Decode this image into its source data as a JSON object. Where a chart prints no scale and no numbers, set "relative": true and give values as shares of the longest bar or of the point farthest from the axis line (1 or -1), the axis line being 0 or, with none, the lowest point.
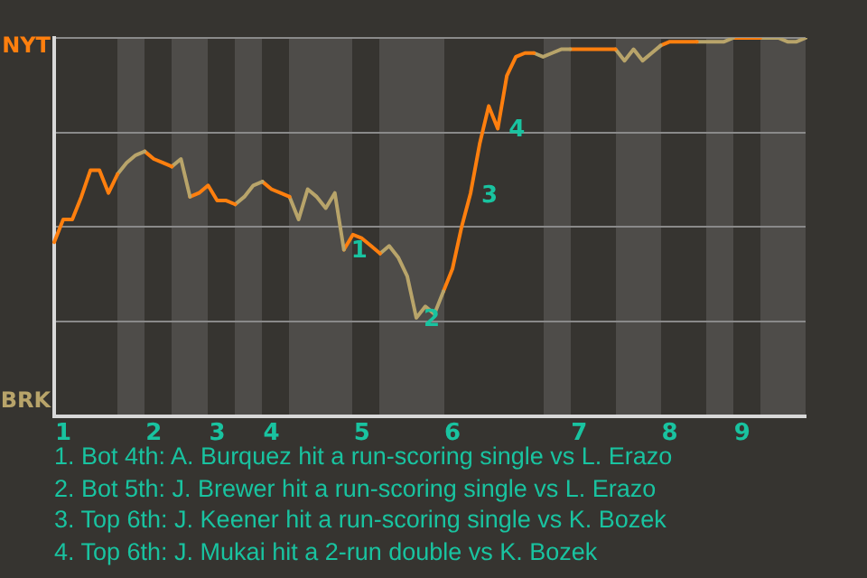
{
  "chart_data": {
    "type": "line",
    "relative": true,
    "categories": [
      null,
      "1",
      null,
      null,
      null,
      null,
      null,
      null,
      null,
      null,
      null,
      "2",
      null,
      null,
      null,
      null,
      null,
      null,
      "3",
      null,
      null,
      null,
      null,
      null,
      "4",
      null,
      null,
      null,
      null,
      null,
      null,
      null,
      null,
      null,
      "5",
      null,
      null,
      null,
      null,
      null,
      null,
      null,
      null,
      null,
      "6",
      null,
      null,
      null,
      null,
      null,
      null,
      null,
      null,
      null,
      null,
      null,
      null,
      null,
      "7",
      null,
      null,
      null,
      null,
      null,
      null,
      null,
      null,
      null,
      "8",
      null,
      null,
      null,
      null,
      null,
      null,
      null,
      "9",
      null,
      null,
      null,
      null,
      null,
      null,
      null
    ],
    "series": [
      {
        "color": "#ff7f0e",
        "values": [
          0.46,
          0.52,
          0.52,
          0.58,
          0.65,
          0.65,
          0.59,
          0.64,
          null,
          null,
          null,
          null,
          null,
          null,
          null,
          null,
          null,
          null,
          null,
          null,
          null,
          null,
          null,
          null,
          null,
          null,
          null,
          null,
          null,
          null,
          null,
          null,
          null,
          null,
          null,
          null,
          null,
          null,
          null,
          null,
          null,
          null,
          null,
          null,
          null,
          null,
          null,
          null,
          null,
          null,
          null,
          null,
          null,
          null,
          null,
          null,
          null,
          null,
          null,
          null,
          null,
          null,
          null,
          null,
          null,
          null,
          null,
          null,
          null,
          null,
          null,
          null,
          null,
          null,
          null,
          null,
          null,
          null,
          null,
          null,
          null,
          null,
          null,
          null
        ]
      },
      {
        "color": "#b8a46a",
        "values": [
          null,
          null,
          null,
          null,
          null,
          null,
          null,
          0.64,
          0.67,
          0.69,
          0.7,
          null,
          null,
          null,
          null,
          null,
          null,
          null,
          null,
          null,
          null,
          null,
          null,
          null,
          null,
          null,
          null,
          null,
          null,
          null,
          null,
          null,
          null,
          null,
          null,
          null,
          null,
          null,
          null,
          null,
          null,
          null,
          null,
          null,
          null,
          null,
          null,
          null,
          null,
          null,
          null,
          null,
          null,
          null,
          null,
          null,
          null,
          null,
          null,
          null,
          null,
          null,
          null,
          null,
          null,
          null,
          null,
          null,
          null,
          null,
          null,
          null,
          null,
          null,
          null,
          null,
          null,
          null,
          null,
          null,
          null,
          null,
          null,
          null
        ]
      },
      {
        "color": "#ff7f0e",
        "values": [
          null,
          null,
          null,
          null,
          null,
          null,
          null,
          null,
          null,
          null,
          0.7,
          0.68,
          0.67,
          0.66,
          null,
          null,
          null,
          null,
          null,
          null,
          null,
          null,
          null,
          null,
          null,
          null,
          null,
          null,
          null,
          null,
          null,
          null,
          null,
          null,
          null,
          null,
          null,
          null,
          null,
          null,
          null,
          null,
          null,
          null,
          null,
          null,
          null,
          null,
          null,
          null,
          null,
          null,
          null,
          null,
          null,
          null,
          null,
          null,
          null,
          null,
          null,
          null,
          null,
          null,
          null,
          null,
          null,
          null,
          null,
          null,
          null,
          null,
          null,
          null,
          null,
          null,
          null,
          null,
          null,
          null,
          null,
          null,
          null,
          null
        ]
      },
      {
        "color": "#b8a46a",
        "values": [
          null,
          null,
          null,
          null,
          null,
          null,
          null,
          null,
          null,
          null,
          null,
          null,
          null,
          0.66,
          0.68,
          0.58,
          null,
          null,
          null,
          null,
          null,
          null,
          null,
          null,
          null,
          null,
          null,
          null,
          null,
          null,
          null,
          null,
          null,
          null,
          null,
          null,
          null,
          null,
          null,
          null,
          null,
          null,
          null,
          null,
          null,
          null,
          null,
          null,
          null,
          null,
          null,
          null,
          null,
          null,
          null,
          null,
          null,
          null,
          null,
          null,
          null,
          null,
          null,
          null,
          null,
          null,
          null,
          null,
          null,
          null,
          null,
          null,
          null,
          null,
          null,
          null,
          null,
          null,
          null,
          null,
          null,
          null,
          null,
          null
        ]
      },
      {
        "color": "#ff7f0e",
        "values": [
          null,
          null,
          null,
          null,
          null,
          null,
          null,
          null,
          null,
          null,
          null,
          null,
          null,
          null,
          null,
          0.58,
          0.59,
          0.61,
          0.57,
          0.57,
          0.56,
          null,
          null,
          null,
          null,
          null,
          null,
          null,
          null,
          null,
          null,
          null,
          null,
          null,
          null,
          null,
          null,
          null,
          null,
          null,
          null,
          null,
          null,
          null,
          null,
          null,
          null,
          null,
          null,
          null,
          null,
          null,
          null,
          null,
          null,
          null,
          null,
          null,
          null,
          null,
          null,
          null,
          null,
          null,
          null,
          null,
          null,
          null,
          null,
          null,
          null,
          null,
          null,
          null,
          null,
          null,
          null,
          null,
          null,
          null,
          null,
          null,
          null,
          null
        ]
      },
      {
        "color": "#b8a46a",
        "values": [
          null,
          null,
          null,
          null,
          null,
          null,
          null,
          null,
          null,
          null,
          null,
          null,
          null,
          null,
          null,
          null,
          null,
          null,
          null,
          null,
          0.56,
          0.58,
          0.61,
          0.62,
          null,
          null,
          null,
          null,
          null,
          null,
          null,
          null,
          null,
          null,
          null,
          null,
          null,
          null,
          null,
          null,
          null,
          null,
          null,
          null,
          null,
          null,
          null,
          null,
          null,
          null,
          null,
          null,
          null,
          null,
          null,
          null,
          null,
          null,
          null,
          null,
          null,
          null,
          null,
          null,
          null,
          null,
          null,
          null,
          null,
          null,
          null,
          null,
          null,
          null,
          null,
          null,
          null,
          null,
          null,
          null,
          null,
          null,
          null,
          null
        ]
      },
      {
        "color": "#ff7f0e",
        "values": [
          null,
          null,
          null,
          null,
          null,
          null,
          null,
          null,
          null,
          null,
          null,
          null,
          null,
          null,
          null,
          null,
          null,
          null,
          null,
          null,
          null,
          null,
          null,
          0.62,
          0.6,
          0.59,
          0.58,
          null,
          null,
          null,
          null,
          null,
          null,
          null,
          null,
          null,
          null,
          null,
          null,
          null,
          null,
          null,
          null,
          null,
          null,
          null,
          null,
          null,
          null,
          null,
          null,
          null,
          null,
          null,
          null,
          null,
          null,
          null,
          null,
          null,
          null,
          null,
          null,
          null,
          null,
          null,
          null,
          null,
          null,
          null,
          null,
          null,
          null,
          null,
          null,
          null,
          null,
          null,
          null,
          null,
          null,
          null,
          null,
          null
        ]
      },
      {
        "color": "#b8a46a",
        "values": [
          null,
          null,
          null,
          null,
          null,
          null,
          null,
          null,
          null,
          null,
          null,
          null,
          null,
          null,
          null,
          null,
          null,
          null,
          null,
          null,
          null,
          null,
          null,
          null,
          null,
          null,
          0.58,
          0.52,
          0.6,
          0.58,
          0.55,
          0.59,
          0.44,
          null,
          null,
          null,
          null,
          null,
          null,
          null,
          null,
          null,
          null,
          null,
          null,
          null,
          null,
          null,
          null,
          null,
          null,
          null,
          null,
          null,
          null,
          null,
          null,
          null,
          null,
          null,
          null,
          null,
          null,
          null,
          null,
          null,
          null,
          null,
          null,
          null,
          null,
          null,
          null,
          null,
          null,
          null,
          null,
          null,
          null,
          null,
          null,
          null,
          null,
          null
        ]
      },
      {
        "color": "#ff7f0e",
        "values": [
          null,
          null,
          null,
          null,
          null,
          null,
          null,
          null,
          null,
          null,
          null,
          null,
          null,
          null,
          null,
          null,
          null,
          null,
          null,
          null,
          null,
          null,
          null,
          null,
          null,
          null,
          null,
          null,
          null,
          null,
          null,
          null,
          0.44,
          0.48,
          0.47,
          0.45,
          0.43,
          null,
          null,
          null,
          null,
          null,
          null,
          null,
          null,
          null,
          null,
          null,
          null,
          null,
          null,
          null,
          null,
          null,
          null,
          null,
          null,
          null,
          null,
          null,
          null,
          null,
          null,
          null,
          null,
          null,
          null,
          null,
          null,
          null,
          null,
          null,
          null,
          null,
          null,
          null,
          null,
          null,
          null,
          null,
          null,
          null,
          null,
          null
        ]
      },
      {
        "color": "#b8a46a",
        "values": [
          null,
          null,
          null,
          null,
          null,
          null,
          null,
          null,
          null,
          null,
          null,
          null,
          null,
          null,
          null,
          null,
          null,
          null,
          null,
          null,
          null,
          null,
          null,
          null,
          null,
          null,
          null,
          null,
          null,
          null,
          null,
          null,
          null,
          null,
          null,
          null,
          0.43,
          0.45,
          0.42,
          0.37,
          0.26,
          0.29,
          0.27,
          0.33,
          null,
          null,
          null,
          null,
          null,
          null,
          null,
          null,
          null,
          null,
          null,
          null,
          null,
          null,
          null,
          null,
          null,
          null,
          null,
          null,
          null,
          null,
          null,
          null,
          null,
          null,
          null,
          null,
          null,
          null,
          null,
          null,
          null,
          null,
          null,
          null,
          null,
          null,
          null,
          null
        ]
      },
      {
        "color": "#ff7f0e",
        "values": [
          null,
          null,
          null,
          null,
          null,
          null,
          null,
          null,
          null,
          null,
          null,
          null,
          null,
          null,
          null,
          null,
          null,
          null,
          null,
          null,
          null,
          null,
          null,
          null,
          null,
          null,
          null,
          null,
          null,
          null,
          null,
          null,
          null,
          null,
          null,
          null,
          null,
          null,
          null,
          null,
          null,
          null,
          null,
          0.33,
          0.39,
          0.5,
          0.59,
          0.72,
          0.82,
          0.76,
          0.9,
          0.95,
          0.96,
          0.96,
          null,
          null,
          null,
          null,
          null,
          null,
          null,
          null,
          null,
          null,
          null,
          null,
          null,
          null,
          null,
          null,
          null,
          null,
          null,
          null,
          null,
          null,
          null,
          null,
          null,
          null,
          null,
          null,
          null,
          null
        ]
      },
      {
        "color": "#b8a46a",
        "values": [
          null,
          null,
          null,
          null,
          null,
          null,
          null,
          null,
          null,
          null,
          null,
          null,
          null,
          null,
          null,
          null,
          null,
          null,
          null,
          null,
          null,
          null,
          null,
          null,
          null,
          null,
          null,
          null,
          null,
          null,
          null,
          null,
          null,
          null,
          null,
          null,
          null,
          null,
          null,
          null,
          null,
          null,
          null,
          null,
          null,
          null,
          null,
          null,
          null,
          null,
          null,
          null,
          null,
          0.96,
          0.95,
          0.96,
          0.97,
          0.97,
          null,
          null,
          null,
          null,
          null,
          null,
          null,
          null,
          null,
          null,
          null,
          null,
          null,
          null,
          null,
          null,
          null,
          null,
          null,
          null,
          null,
          null,
          null,
          null,
          null,
          null
        ]
      },
      {
        "color": "#ff7f0e",
        "values": [
          null,
          null,
          null,
          null,
          null,
          null,
          null,
          null,
          null,
          null,
          null,
          null,
          null,
          null,
          null,
          null,
          null,
          null,
          null,
          null,
          null,
          null,
          null,
          null,
          null,
          null,
          null,
          null,
          null,
          null,
          null,
          null,
          null,
          null,
          null,
          null,
          null,
          null,
          null,
          null,
          null,
          null,
          null,
          null,
          null,
          null,
          null,
          null,
          null,
          null,
          null,
          null,
          null,
          null,
          null,
          null,
          null,
          0.97,
          0.97,
          0.97,
          0.97,
          0.97,
          0.97,
          null,
          null,
          null,
          null,
          null,
          null,
          null,
          null,
          null,
          null,
          null,
          null,
          null,
          null,
          null,
          null,
          null,
          null,
          null,
          null,
          null
        ]
      },
      {
        "color": "#b8a46a",
        "values": [
          null,
          null,
          null,
          null,
          null,
          null,
          null,
          null,
          null,
          null,
          null,
          null,
          null,
          null,
          null,
          null,
          null,
          null,
          null,
          null,
          null,
          null,
          null,
          null,
          null,
          null,
          null,
          null,
          null,
          null,
          null,
          null,
          null,
          null,
          null,
          null,
          null,
          null,
          null,
          null,
          null,
          null,
          null,
          null,
          null,
          null,
          null,
          null,
          null,
          null,
          null,
          null,
          null,
          null,
          null,
          null,
          null,
          null,
          null,
          null,
          null,
          null,
          0.97,
          0.94,
          0.97,
          0.94,
          0.96,
          0.98,
          null,
          null,
          null,
          null,
          null,
          null,
          null,
          null,
          null,
          null,
          null,
          null,
          null,
          null,
          null,
          null
        ]
      },
      {
        "color": "#ff7f0e",
        "values": [
          null,
          null,
          null,
          null,
          null,
          null,
          null,
          null,
          null,
          null,
          null,
          null,
          null,
          null,
          null,
          null,
          null,
          null,
          null,
          null,
          null,
          null,
          null,
          null,
          null,
          null,
          null,
          null,
          null,
          null,
          null,
          null,
          null,
          null,
          null,
          null,
          null,
          null,
          null,
          null,
          null,
          null,
          null,
          null,
          null,
          null,
          null,
          null,
          null,
          null,
          null,
          null,
          null,
          null,
          null,
          null,
          null,
          null,
          null,
          null,
          null,
          null,
          null,
          null,
          null,
          null,
          null,
          0.98,
          0.99,
          0.99,
          0.99,
          0.99,
          null,
          null,
          null,
          null,
          null,
          null,
          null,
          null,
          null,
          null,
          null,
          null
        ]
      },
      {
        "color": "#b8a46a",
        "values": [
          null,
          null,
          null,
          null,
          null,
          null,
          null,
          null,
          null,
          null,
          null,
          null,
          null,
          null,
          null,
          null,
          null,
          null,
          null,
          null,
          null,
          null,
          null,
          null,
          null,
          null,
          null,
          null,
          null,
          null,
          null,
          null,
          null,
          null,
          null,
          null,
          null,
          null,
          null,
          null,
          null,
          null,
          null,
          null,
          null,
          null,
          null,
          null,
          null,
          null,
          null,
          null,
          null,
          null,
          null,
          null,
          null,
          null,
          null,
          null,
          null,
          null,
          null,
          null,
          null,
          null,
          null,
          null,
          null,
          null,
          null,
          0.99,
          0.99,
          0.99,
          0.99,
          1,
          null,
          null,
          null,
          null,
          null,
          null,
          null,
          null
        ]
      },
      {
        "color": "#ff7f0e",
        "values": [
          null,
          null,
          null,
          null,
          null,
          null,
          null,
          null,
          null,
          null,
          null,
          null,
          null,
          null,
          null,
          null,
          null,
          null,
          null,
          null,
          null,
          null,
          null,
          null,
          null,
          null,
          null,
          null,
          null,
          null,
          null,
          null,
          null,
          null,
          null,
          null,
          null,
          null,
          null,
          null,
          null,
          null,
          null,
          null,
          null,
          null,
          null,
          null,
          null,
          null,
          null,
          null,
          null,
          null,
          null,
          null,
          null,
          null,
          null,
          null,
          null,
          null,
          null,
          null,
          null,
          null,
          null,
          null,
          null,
          null,
          null,
          null,
          null,
          null,
          null,
          1,
          1,
          1,
          1,
          null,
          null,
          null,
          null,
          null
        ]
      },
      {
        "color": "#b8a46a",
        "values": [
          null,
          null,
          null,
          null,
          null,
          null,
          null,
          null,
          null,
          null,
          null,
          null,
          null,
          null,
          null,
          null,
          null,
          null,
          null,
          null,
          null,
          null,
          null,
          null,
          null,
          null,
          null,
          null,
          null,
          null,
          null,
          null,
          null,
          null,
          null,
          null,
          null,
          null,
          null,
          null,
          null,
          null,
          null,
          null,
          null,
          null,
          null,
          null,
          null,
          null,
          null,
          null,
          null,
          null,
          null,
          null,
          null,
          null,
          null,
          null,
          null,
          null,
          null,
          null,
          null,
          null,
          null,
          null,
          null,
          null,
          null,
          null,
          null,
          null,
          null,
          null,
          null,
          null,
          1,
          1,
          1,
          0.99,
          0.99,
          1
        ]
      }
    ],
    "grid": "y",
    "legend": false,
    "marker": "none",
    "line_style": "solid",
    "annotations": [
      {
        "text": "1",
        "y": 0.44
      },
      {
        "text": "2",
        "y": 0.26
      },
      "3",
      "4",
      "NYT",
      "BRK",
      "1. Bot 4th: A. Burquez hit a run-scoring single vs L. Erazo",
      "2. Bot 5th: J. Brewer hit a run-scoring single vs L. Erazo",
      "3. Top 6th: J. Keener hit a run-scoring single vs K. Bozek",
      "4. Top 6th: J. Mukai hit a 2-run double vs K. Bozek"
    ]
  }
}
